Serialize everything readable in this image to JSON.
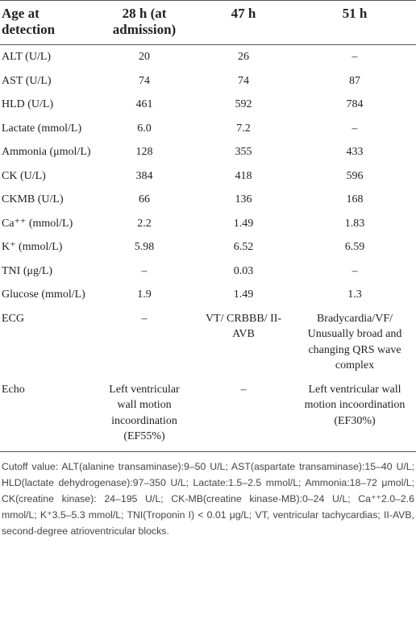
{
  "table": {
    "header": [
      "Age at detection",
      "28 h (at admission)",
      "47 h",
      "51 h"
    ],
    "rows": [
      [
        "ALT (U/L)",
        "20",
        "26",
        "–"
      ],
      [
        "AST (U/L)",
        "74",
        "74",
        "87"
      ],
      [
        "HLD (U/L)",
        "461",
        "592",
        "784"
      ],
      [
        "Lactate (mmol/L)",
        "6.0",
        "7.2",
        "–"
      ],
      [
        "Ammonia (μmol/L)",
        "128",
        "355",
        "433"
      ],
      [
        "CK (U/L)",
        "384",
        "418",
        "596"
      ],
      [
        "CKMB (U/L)",
        "66",
        "136",
        "168"
      ],
      [
        "Ca⁺⁺ (mmol/L)",
        "2.2",
        "1.49",
        "1.83"
      ],
      [
        "K⁺ (mmol/L)",
        "5.98",
        "6.52",
        "6.59"
      ],
      [
        "TNI (μg/L)",
        "–",
        "0.03",
        "–"
      ],
      [
        "Glucose (mmol/L)",
        "1.9",
        "1.49",
        "1.3"
      ],
      [
        "ECG",
        "–",
        "VT/ CRBBB/ II-AVB",
        "Bradycardia/VF/ Unusually broad and changing QRS wave complex"
      ],
      [
        "Echo",
        "Left ventricular wall motion incoordination (EF55%)",
        "–",
        "Left ventricular wall motion incoordination (EF30%)"
      ]
    ],
    "footnote": "Cutoff value: ALT(alanine transaminase):9–50 U/L; AST(aspartate transaminase):15–40 U/L; HLD(lactate dehydrogenase):97–350 U/L; Lactate:1.5–2.5 mmol/L; Ammonia:18–72 μmol/L; CK(creatine kinase): 24–195 U/L; CK-MB(creatine kinase-MB):0–24 U/L; Ca⁺⁺2.0–2.6 mmol/L; K⁺3.5–5.3 mmol/L; TNI(Troponin I) < 0.01 μg/L; VT, ventricular tachycardias; II-AVB, second-degree atrioventricular blocks."
  }
}
